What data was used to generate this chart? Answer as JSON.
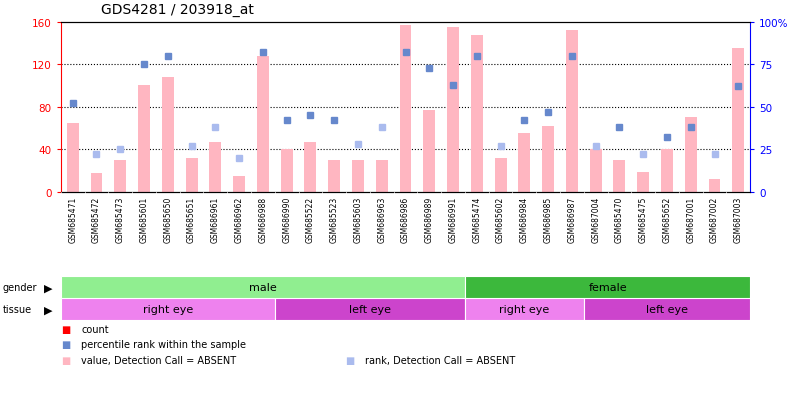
{
  "title": "GDS4281 / 203918_at",
  "samples": [
    "GSM685471",
    "GSM685472",
    "GSM685473",
    "GSM685601",
    "GSM685650",
    "GSM685651",
    "GSM686961",
    "GSM686962",
    "GSM686988",
    "GSM686990",
    "GSM685522",
    "GSM685523",
    "GSM685603",
    "GSM686963",
    "GSM686986",
    "GSM686989",
    "GSM686991",
    "GSM685474",
    "GSM685602",
    "GSM686984",
    "GSM686985",
    "GSM686987",
    "GSM687004",
    "GSM685470",
    "GSM685475",
    "GSM685652",
    "GSM687001",
    "GSM687002",
    "GSM687003"
  ],
  "bar_values": [
    65,
    17,
    30,
    100,
    108,
    32,
    47,
    15,
    128,
    40,
    47,
    30,
    30,
    30,
    157,
    77,
    155,
    148,
    32,
    55,
    62,
    152,
    40,
    30,
    18,
    40,
    70,
    12,
    135
  ],
  "rank_values": [
    52,
    22,
    25,
    75,
    80,
    27,
    38,
    20,
    82,
    42,
    45,
    42,
    28,
    38,
    82,
    73,
    63,
    80,
    27,
    42,
    47,
    80,
    27,
    38,
    22,
    32,
    38,
    22,
    62
  ],
  "absent_bar": [
    true,
    true,
    true,
    false,
    false,
    true,
    false,
    true,
    false,
    false,
    false,
    true,
    true,
    true,
    false,
    false,
    false,
    false,
    true,
    false,
    false,
    false,
    true,
    true,
    true,
    false,
    false,
    true,
    false
  ],
  "absent_rank": [
    false,
    true,
    true,
    false,
    false,
    true,
    true,
    true,
    false,
    false,
    false,
    false,
    true,
    true,
    false,
    false,
    false,
    false,
    true,
    false,
    false,
    false,
    true,
    false,
    true,
    false,
    false,
    true,
    false
  ],
  "gender_groups": [
    {
      "label": "male",
      "start": 0,
      "end": 17,
      "color": "#90EE90"
    },
    {
      "label": "female",
      "start": 17,
      "end": 29,
      "color": "#3CB83C"
    }
  ],
  "tissue_groups": [
    {
      "label": "right eye",
      "start": 0,
      "end": 9,
      "color": "#EE82EE"
    },
    {
      "label": "left eye",
      "start": 9,
      "end": 17,
      "color": "#CC44CC"
    },
    {
      "label": "right eye",
      "start": 17,
      "end": 22,
      "color": "#EE82EE"
    },
    {
      "label": "left eye",
      "start": 22,
      "end": 29,
      "color": "#CC44CC"
    }
  ],
  "ylim_left": [
    0,
    160
  ],
  "ylim_right": [
    0,
    100
  ],
  "yticks_left": [
    0,
    40,
    80,
    120,
    160
  ],
  "yticks_right": [
    0,
    25,
    50,
    75,
    100
  ],
  "bar_color_present": "#FFB6C1",
  "bar_color_absent": "#FFB6C1",
  "rank_color_present": "#6688CC",
  "rank_color_absent": "#AABBEE",
  "left_axis_color": "red",
  "right_axis_color": "blue",
  "xtick_bg_color": "#C8C8C8",
  "border_color": "black"
}
